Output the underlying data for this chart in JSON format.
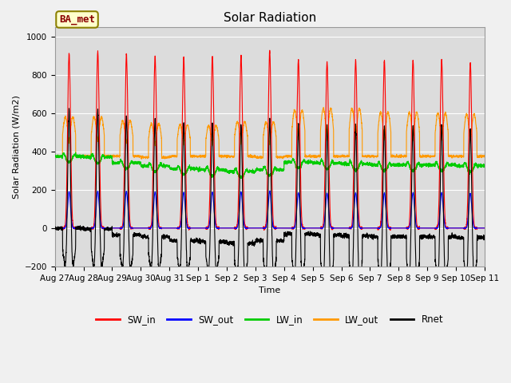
{
  "title": "Solar Radiation",
  "ylabel": "Solar Radiation (W/m2)",
  "xlabel": "Time",
  "ylim": [
    -200,
    1050
  ],
  "yticks": [
    -200,
    0,
    200,
    400,
    600,
    800,
    1000
  ],
  "plot_bg_color": "#dcdcdc",
  "fig_bg_color": "#f0f0f0",
  "site_label": "BA_met",
  "legend_entries": [
    "SW_in",
    "SW_out",
    "LW_in",
    "LW_out",
    "Rnet"
  ],
  "legend_colors": [
    "#ff0000",
    "#0000ff",
    "#00cc00",
    "#ff9900",
    "#000000"
  ],
  "line_colors": {
    "SW_in": "#ff0000",
    "SW_out": "#0000ff",
    "LW_in": "#00cc00",
    "LW_out": "#ff9900",
    "Rnet": "#000000"
  },
  "xtick_labels": [
    "Aug 27",
    "Aug 28",
    "Aug 29",
    "Aug 30",
    "Aug 31",
    "Sep 1",
    "Sep 2",
    "Sep 3",
    "Sep 4",
    "Sep 5",
    "Sep 6",
    "Sep 7",
    "Sep 8",
    "Sep 9",
    "Sep 10",
    "Sep 11"
  ],
  "n_days": 15,
  "pts_per_day": 288,
  "sw_peaks": [
    910,
    920,
    905,
    895,
    890,
    895,
    900,
    920,
    880,
    870,
    875,
    875,
    880,
    880,
    860
  ],
  "lw_out_peaks": [
    580,
    580,
    560,
    545,
    540,
    535,
    555,
    555,
    615,
    625,
    625,
    605,
    605,
    600,
    595
  ],
  "lw_out_night": [
    375,
    375,
    375,
    370,
    375,
    375,
    375,
    370,
    375,
    375,
    375,
    375,
    375,
    375,
    375
  ],
  "lw_in_baseline": [
    375,
    370,
    340,
    325,
    310,
    305,
    295,
    305,
    345,
    340,
    335,
    330,
    330,
    330,
    325
  ],
  "sw_out_ratio": 0.21,
  "rnet_night": -100
}
